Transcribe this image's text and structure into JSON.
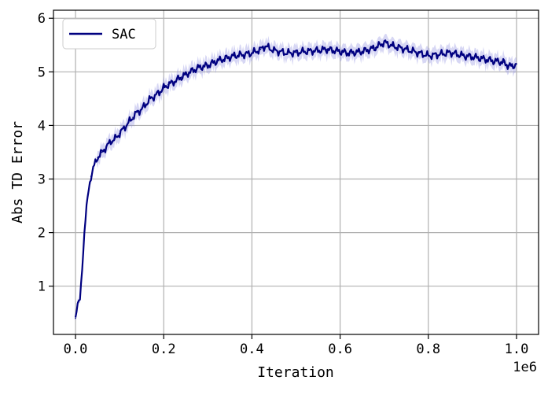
{
  "chart_data": {
    "type": "line",
    "xlabel": "Iteration",
    "ylabel": "Abs TD Error",
    "x_offset_label": "1e6",
    "xlim": [
      -0.05,
      1.05
    ],
    "ylim": [
      0.1,
      6.15
    ],
    "x_ticks": [
      0.0,
      0.2,
      0.4,
      0.6,
      0.8,
      1.0
    ],
    "x_tick_labels": [
      "0.0",
      "0.2",
      "0.4",
      "0.6",
      "0.8",
      "1.0"
    ],
    "y_ticks": [
      1,
      2,
      3,
      4,
      5,
      6
    ],
    "y_tick_labels": [
      "1",
      "2",
      "3",
      "4",
      "5",
      "6"
    ],
    "grid": true,
    "legend_position": "top-left",
    "series": [
      {
        "name": "SAC",
        "color": "#000080",
        "band_color": "#8c8ce0",
        "x": [
          0.0,
          0.005,
          0.01,
          0.015,
          0.02,
          0.025,
          0.03,
          0.035,
          0.04,
          0.05,
          0.06,
          0.07,
          0.08,
          0.09,
          0.1,
          0.11,
          0.12,
          0.13,
          0.14,
          0.15,
          0.16,
          0.17,
          0.18,
          0.19,
          0.2,
          0.21,
          0.22,
          0.23,
          0.24,
          0.25,
          0.26,
          0.28,
          0.3,
          0.32,
          0.34,
          0.36,
          0.38,
          0.4,
          0.42,
          0.43,
          0.45,
          0.48,
          0.5,
          0.52,
          0.55,
          0.57,
          0.6,
          0.62,
          0.65,
          0.68,
          0.7,
          0.72,
          0.75,
          0.78,
          0.8,
          0.82,
          0.85,
          0.88,
          0.9,
          0.92,
          0.95,
          0.97,
          0.98,
          0.99,
          1.0
        ],
        "values": [
          0.4,
          0.7,
          0.75,
          1.3,
          2.0,
          2.5,
          2.8,
          3.05,
          3.2,
          3.4,
          3.5,
          3.6,
          3.7,
          3.75,
          3.85,
          3.95,
          4.05,
          4.15,
          4.25,
          4.3,
          4.4,
          4.5,
          4.55,
          4.62,
          4.7,
          4.76,
          4.8,
          4.85,
          4.9,
          4.95,
          5.0,
          5.08,
          5.12,
          5.2,
          5.25,
          5.3,
          5.32,
          5.35,
          5.42,
          5.48,
          5.4,
          5.35,
          5.36,
          5.38,
          5.4,
          5.42,
          5.38,
          5.35,
          5.38,
          5.45,
          5.55,
          5.48,
          5.42,
          5.35,
          5.3,
          5.32,
          5.36,
          5.3,
          5.28,
          5.25,
          5.2,
          5.18,
          5.12,
          5.1,
          5.15
        ]
      }
    ]
  }
}
